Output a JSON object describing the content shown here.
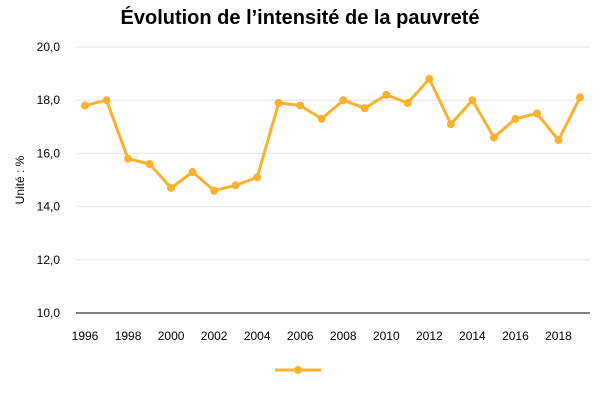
{
  "chart_data": {
    "type": "line",
    "title": "Évolution de l’intensité de la pauvreté",
    "xlabel": "",
    "ylabel": "Unité : %",
    "ylim": [
      10,
      20
    ],
    "xlim": [
      1996,
      2019
    ],
    "y_ticks": [
      "10,0",
      "12,0",
      "14,0",
      "16,0",
      "18,0",
      "20,0"
    ],
    "x_ticks": [
      "1996",
      "1998",
      "2000",
      "2002",
      "2004",
      "2006",
      "2008",
      "2010",
      "2012",
      "2014",
      "2016",
      "2018"
    ],
    "grid": true,
    "legend": "bottom",
    "series": [
      {
        "color": "#fbb12e",
        "x": [
          1996,
          1997,
          1998,
          1999,
          2000,
          2001,
          2002,
          2003,
          2004,
          2005,
          2006,
          2007,
          2008,
          2009,
          2010,
          2011,
          2012,
          2013,
          2014,
          2015,
          2016,
          2017,
          2018,
          2019
        ],
        "values": [
          17.8,
          18.0,
          15.8,
          15.6,
          14.7,
          15.3,
          14.6,
          14.8,
          15.1,
          17.9,
          17.8,
          17.3,
          18.0,
          17.7,
          18.2,
          17.9,
          18.8,
          17.1,
          18.0,
          16.6,
          17.3,
          17.5,
          16.5,
          18.1
        ]
      }
    ]
  }
}
